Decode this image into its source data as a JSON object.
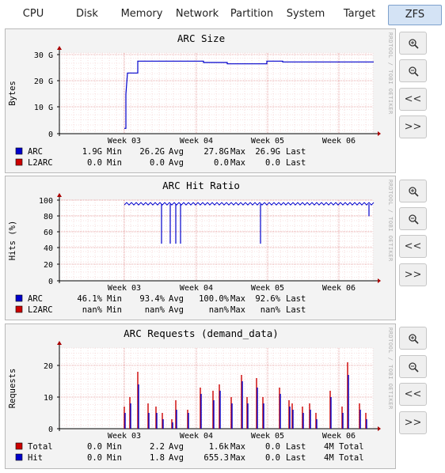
{
  "tabs": [
    {
      "label": "CPU",
      "active": false
    },
    {
      "label": "Disk",
      "active": false
    },
    {
      "label": "Memory",
      "active": false
    },
    {
      "label": "Network",
      "active": false
    },
    {
      "label": "Partition",
      "active": false
    },
    {
      "label": "System",
      "active": false
    },
    {
      "label": "Target",
      "active": false
    },
    {
      "label": "ZFS",
      "active": true
    }
  ],
  "watermark": "RRDTOOL / TOBI OETIKER",
  "buttons": {
    "zoom_in_icon": "zoom-in",
    "zoom_out_icon": "zoom-out",
    "back": "<<",
    "forward": ">>"
  },
  "x_ticks": [
    "Week 03",
    "Week 04",
    "Week 05",
    "Week 06"
  ],
  "graphs": [
    {
      "title": "ARC Size",
      "ylabel": "Bytes",
      "yticks": [
        "30 G",
        "20 G",
        "10 G",
        "0"
      ],
      "legend": [
        {
          "color": "#0000cc",
          "name": "ARC",
          "v1": "1.9G",
          "l1": "Min",
          "v2": "26.2G",
          "l2": "Avg",
          "v3": "27.8G",
          "l3": "Max",
          "v4": "26.9G",
          "l4": "Last",
          "extra": ""
        },
        {
          "color": "#cc0000",
          "name": "L2ARC",
          "v1": "0.0",
          "l1": "Min",
          "v2": "0.0",
          "l2": "Avg",
          "v3": "0.0",
          "l3": "Max",
          "v4": "0.0",
          "l4": "Last",
          "extra": ""
        }
      ]
    },
    {
      "title": "ARC Hit Ratio",
      "ylabel": "Hits (%)",
      "yticks": [
        "100",
        "80",
        "60",
        "40",
        "20",
        "0"
      ],
      "legend": [
        {
          "color": "#0000cc",
          "name": "ARC",
          "v1": "46.1%",
          "l1": "Min",
          "v2": "93.4%",
          "l2": "Avg",
          "v3": "100.0%",
          "l3": "Max",
          "v4": "92.6%",
          "l4": "Last",
          "extra": ""
        },
        {
          "color": "#cc0000",
          "name": "L2ARC",
          "v1": "nan%",
          "l1": "Min",
          "v2": "nan%",
          "l2": "Avg",
          "v3": "nan%",
          "l3": "Max",
          "v4": "nan%",
          "l4": "Last",
          "extra": ""
        }
      ]
    },
    {
      "title": "ARC Requests (demand_data)",
      "ylabel": "Requests",
      "yticks": [
        "20",
        "10",
        "0"
      ],
      "legend": [
        {
          "color": "#cc0000",
          "name": "Total",
          "v1": "0.0",
          "l1": "Min",
          "v2": "2.2",
          "l2": "Avg",
          "v3": "1.6k",
          "l3": "Max",
          "v4": "0.0",
          "l4": "Last",
          "extra": "4M Total"
        },
        {
          "color": "#0000cc",
          "name": "Hit",
          "v1": "0.0",
          "l1": "Min",
          "v2": "1.8",
          "l2": "Avg",
          "v3": "655.3",
          "l3": "Max",
          "v4": "0.0",
          "l4": "Last",
          "extra": "4M Total"
        }
      ]
    }
  ]
}
